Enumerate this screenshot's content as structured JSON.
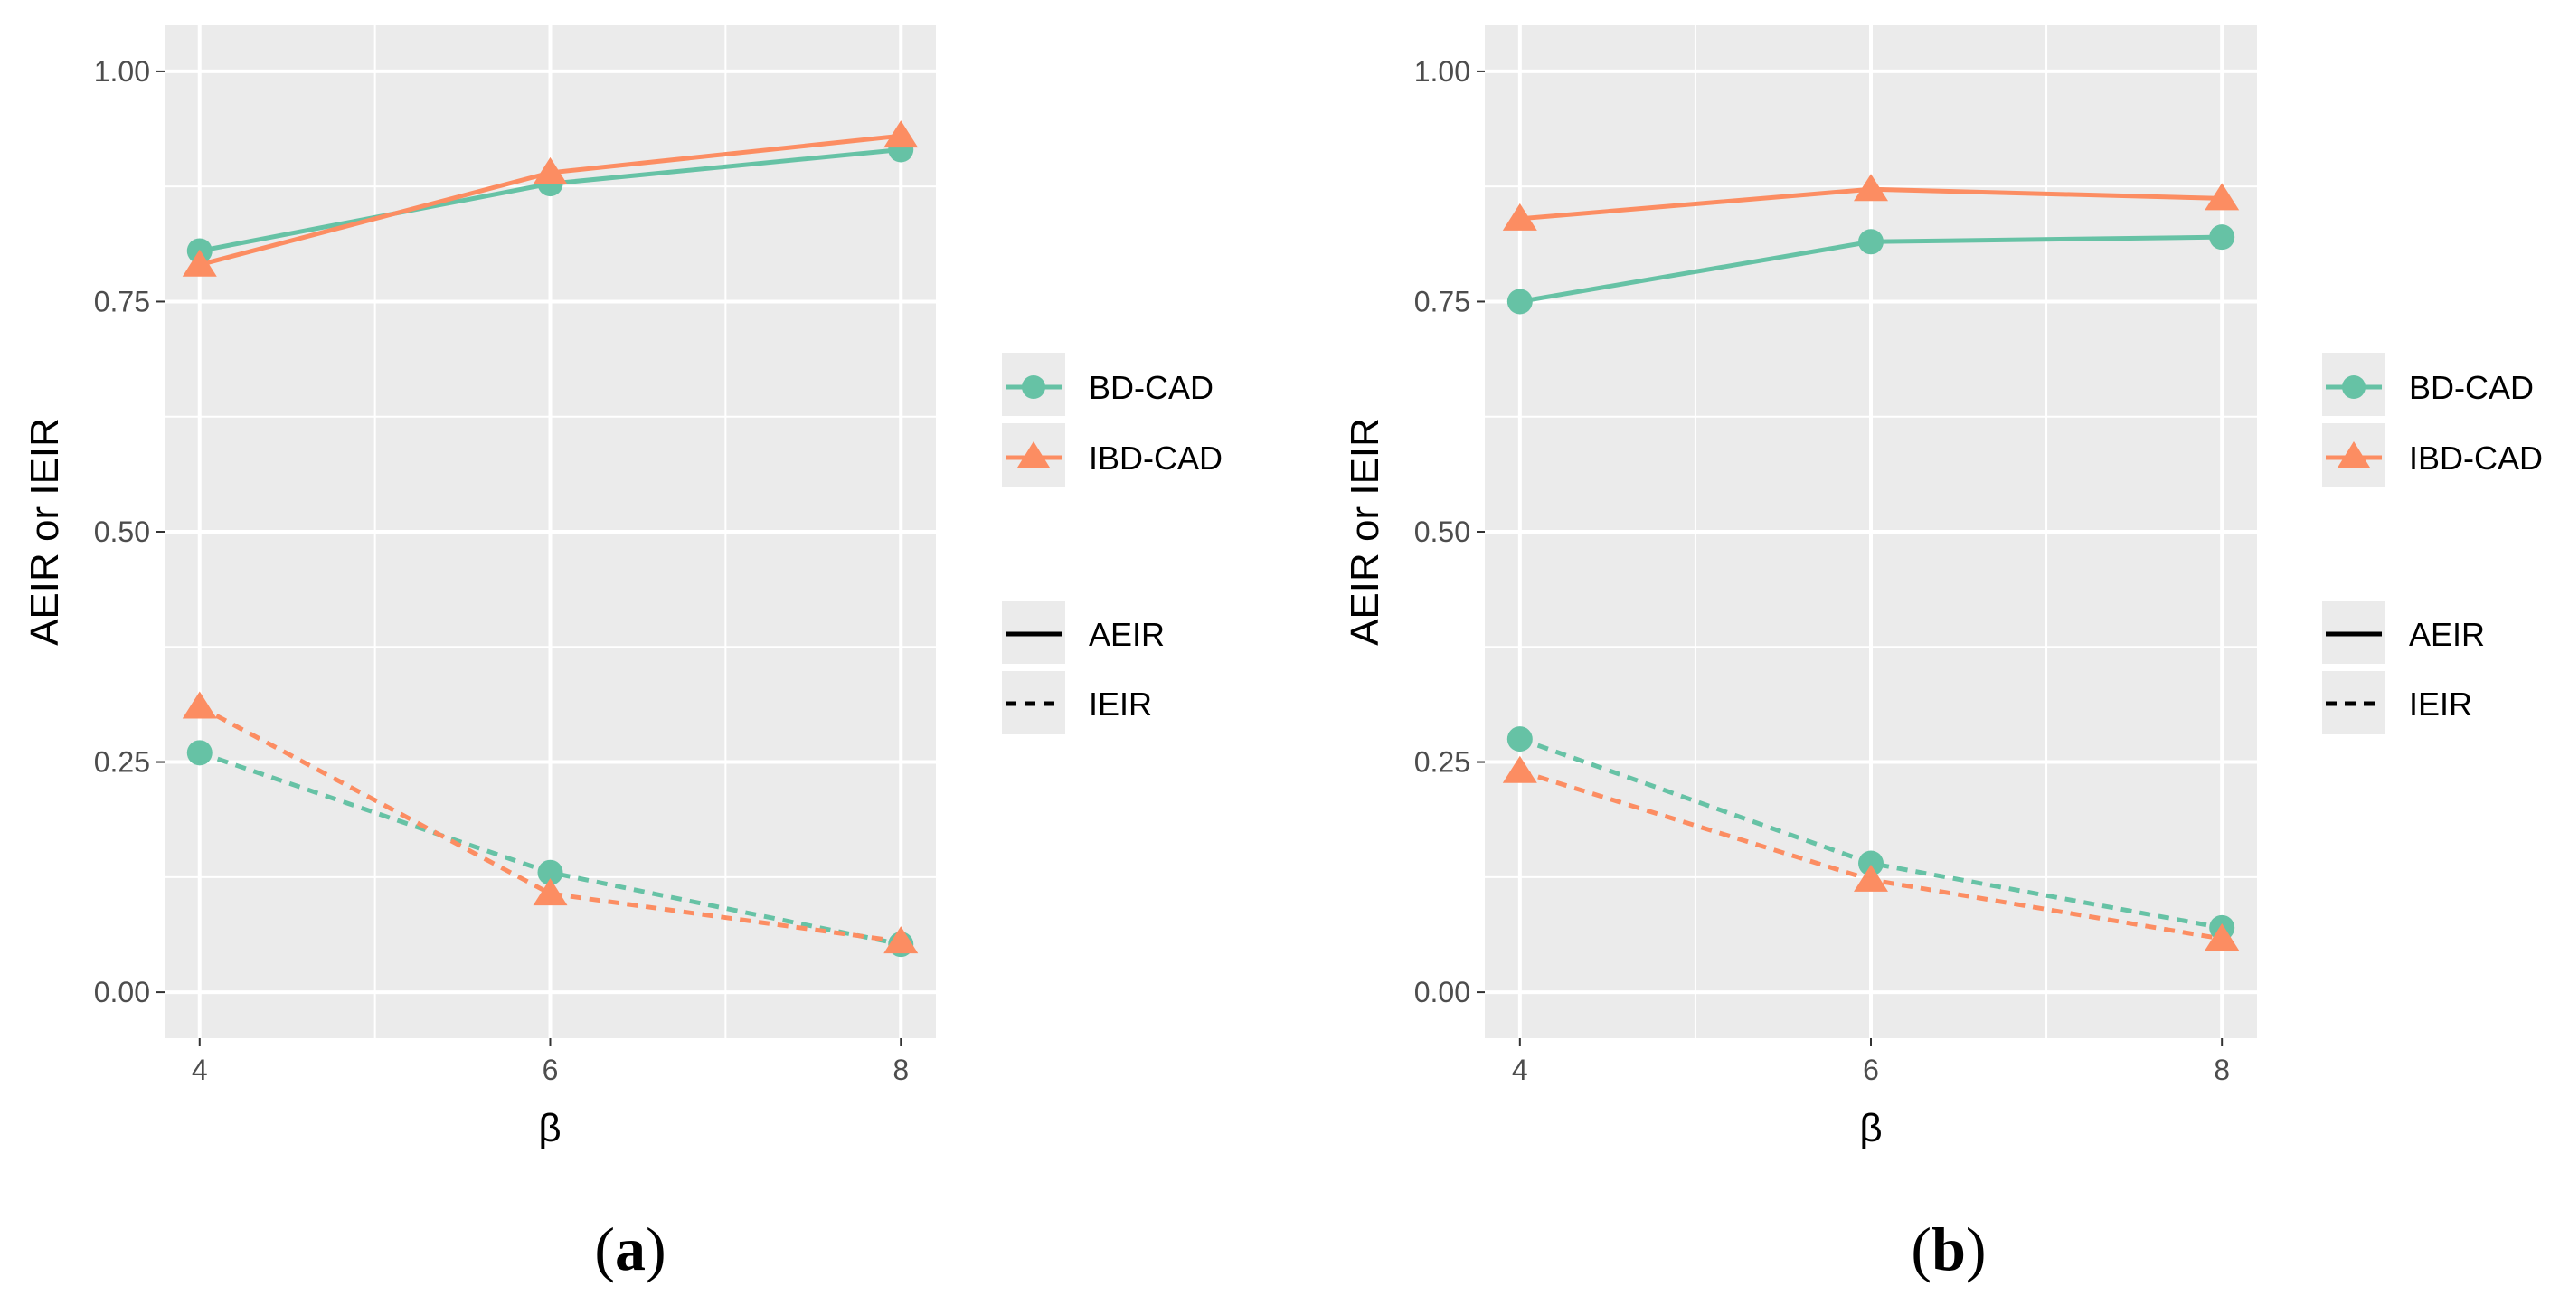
{
  "chart_data": [
    {
      "type": "line",
      "panel_label": "(a)",
      "panel_label_open": "(",
      "panel_label_letter": "a",
      "panel_label_close": ")",
      "xlabel": "β",
      "ylabel": "AEIR or IEIR",
      "xlim": [
        3.8,
        8.2
      ],
      "ylim": [
        -0.05,
        1.05
      ],
      "x_ticks": [
        4,
        6,
        8
      ],
      "x_tick_labels": [
        "4",
        "6",
        "8"
      ],
      "y_ticks": [
        0,
        0.25,
        0.5,
        0.75,
        1
      ],
      "y_tick_labels": [
        "0.00",
        "0.25",
        "0.50",
        "0.75",
        "1.00"
      ],
      "grid": true,
      "legend_placement": "right",
      "x": [
        4,
        6,
        8
      ],
      "series": [
        {
          "name": "BD-CAD",
          "metric": "AEIR",
          "values": [
            0.805,
            0.878,
            0.915
          ]
        },
        {
          "name": "IBD-CAD",
          "metric": "AEIR",
          "values": [
            0.79,
            0.89,
            0.93
          ]
        },
        {
          "name": "BD-CAD",
          "metric": "IEIR",
          "values": [
            0.26,
            0.13,
            0.052
          ]
        },
        {
          "name": "IBD-CAD",
          "metric": "IEIR",
          "values": [
            0.31,
            0.107,
            0.055
          ]
        }
      ]
    },
    {
      "type": "line",
      "panel_label": "(b)",
      "panel_label_open": "(",
      "panel_label_letter": "b",
      "panel_label_close": ")",
      "xlabel": "β",
      "ylabel": "AEIR or IEIR",
      "xlim": [
        3.8,
        8.2
      ],
      "ylim": [
        -0.05,
        1.05
      ],
      "x_ticks": [
        4,
        6,
        8
      ],
      "x_tick_labels": [
        "4",
        "6",
        "8"
      ],
      "y_ticks": [
        0,
        0.25,
        0.5,
        0.75,
        1
      ],
      "y_tick_labels": [
        "0.00",
        "0.25",
        "0.50",
        "0.75",
        "1.00"
      ],
      "grid": true,
      "legend_placement": "right",
      "x": [
        4,
        6,
        8
      ],
      "series": [
        {
          "name": "BD-CAD",
          "metric": "AEIR",
          "values": [
            0.75,
            0.815,
            0.82
          ]
        },
        {
          "name": "IBD-CAD",
          "metric": "AEIR",
          "values": [
            0.84,
            0.872,
            0.862
          ]
        },
        {
          "name": "BD-CAD",
          "metric": "IEIR",
          "values": [
            0.275,
            0.14,
            0.07
          ]
        },
        {
          "name": "IBD-CAD",
          "metric": "IEIR",
          "values": [
            0.24,
            0.122,
            0.058
          ]
        }
      ]
    }
  ],
  "legend": {
    "method_entries": [
      {
        "label": "BD-CAD",
        "color": "#66c2a5",
        "shape": "circle"
      },
      {
        "label": "IBD-CAD",
        "color": "#fc8d62",
        "shape": "triangle"
      }
    ],
    "metric_entries": [
      {
        "label": "AEIR",
        "linetype": "solid"
      },
      {
        "label": "IEIR",
        "linetype": "dashed"
      }
    ]
  },
  "colors": {
    "panel_background": "#ebebeb",
    "grid": "#ffffff",
    "bd_cad": "#66c2a5",
    "ibd_cad": "#fc8d62"
  }
}
